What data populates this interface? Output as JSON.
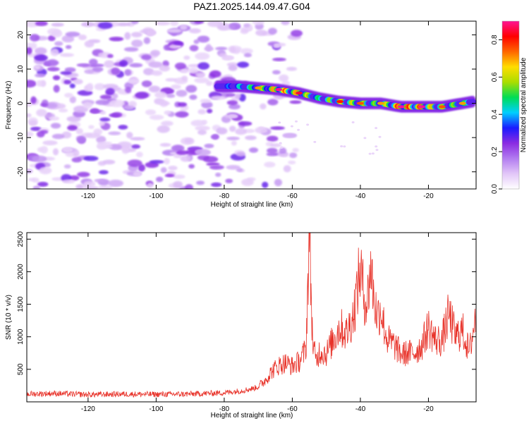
{
  "figure": {
    "title": "PAZ1.2025.144.09.47.G04"
  },
  "chart_data": [
    {
      "type": "heatmap",
      "xlabel": "Height of straight line (km)",
      "ylabel": "Frequency (Hz)",
      "xlim": [
        -138,
        -6
      ],
      "ylim": [
        -25,
        24
      ],
      "xticks": [
        -120,
        -100,
        -80,
        -60,
        -40,
        -20
      ],
      "yticks": [
        -20,
        -10,
        0,
        10,
        20
      ],
      "colorbar": {
        "label": "Normalized spectral amplitude",
        "range": [
          0.0,
          0.9
        ],
        "ticks": [
          "0.0",
          "0.2",
          "0.4",
          "0.6",
          "0.8"
        ],
        "colors": [
          "#ffffff",
          "#e2c6f8",
          "#b27cf0",
          "#8a2be2",
          "#1a1aff",
          "#00cfff",
          "#00dd55",
          "#aadd00",
          "#ffdd00",
          "#ff6600",
          "#ff0000",
          "#ff1493"
        ]
      },
      "signal_ridge": {
        "x": [
          -82,
          -76,
          -70,
          -64,
          -58,
          -52,
          -46,
          -40,
          -34,
          -28,
          -22,
          -16,
          -10,
          -7
        ],
        "frequency": [
          5,
          5,
          4.5,
          4,
          3,
          1.5,
          0.5,
          0,
          0,
          -1,
          -1,
          -1,
          0,
          0.5
        ],
        "amplitude": [
          0.25,
          0.4,
          0.5,
          0.7,
          0.65,
          0.45,
          0.6,
          0.55,
          0.5,
          0.75,
          0.7,
          0.55,
          0.5,
          0.4
        ]
      },
      "noise_region_x": [
        -138,
        -66
      ]
    },
    {
      "type": "line",
      "xlabel": "Height of straight line (km)",
      "ylabel": "SNR (10 * v/v)",
      "xlim": [
        -138,
        -6
      ],
      "ylim": [
        0,
        2600
      ],
      "xticks": [
        -120,
        -100,
        -80,
        -60,
        -40,
        -20
      ],
      "yticks": [
        500,
        1000,
        1500,
        2000,
        2500
      ],
      "color": "#e8332a",
      "series": [
        {
          "x": [
            -138,
            -130,
            -120,
            -110,
            -100,
            -90,
            -80,
            -75,
            -72,
            -70,
            -68,
            -66,
            -64,
            -62,
            -60,
            -58,
            -56,
            -55,
            -54,
            -53,
            -52,
            -50,
            -48,
            -46,
            -44,
            -42,
            -41,
            -40,
            -39,
            -38,
            -37,
            -36,
            -35,
            -34,
            -33,
            -32,
            -30,
            -28,
            -26,
            -24,
            -22,
            -20,
            -18,
            -16,
            -14,
            -12,
            -10,
            -8,
            -6
          ],
          "y": [
            120,
            130,
            110,
            120,
            115,
            120,
            140,
            170,
            200,
            230,
            330,
            470,
            560,
            600,
            550,
            620,
            800,
            2600,
            900,
            620,
            780,
            740,
            950,
            1150,
            1050,
            1350,
            1700,
            2050,
            1650,
            1500,
            2100,
            1600,
            1300,
            1450,
            1150,
            950,
            870,
            730,
            750,
            760,
            860,
            1150,
            950,
            940,
            1350,
            1000,
            1100,
            760,
            1350
          ]
        }
      ]
    }
  ]
}
